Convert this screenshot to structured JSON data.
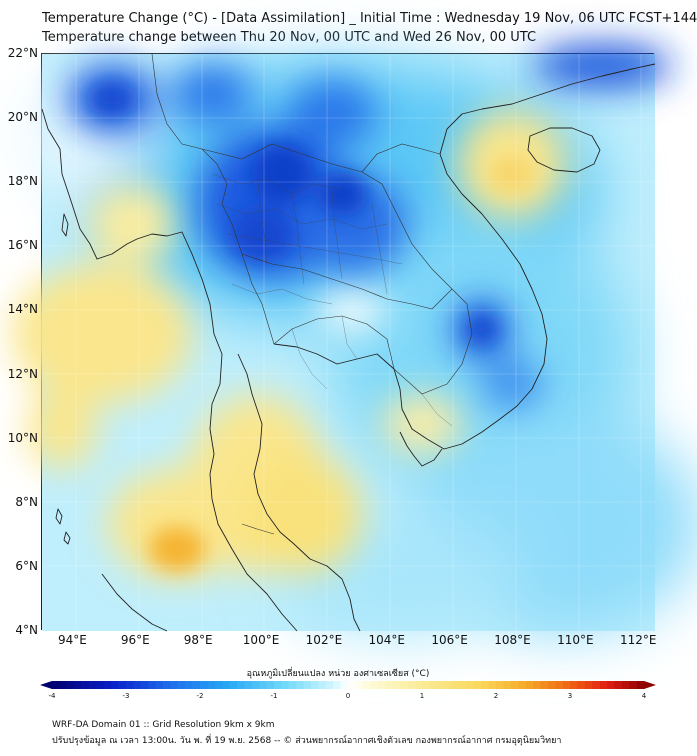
{
  "header": {
    "title_line1": "Temperature Change (°C) - [Data Assimilation] _ Initial Time : Wednesday 19 Nov, 06 UTC FCST+144",
    "title_line2": "Temperature change between Thu 20 Nov, 00 UTC and Wed 26 Nov, 00 UTC"
  },
  "map": {
    "lat_labels": [
      "22°N",
      "20°N",
      "18°N",
      "16°N",
      "14°N",
      "12°N",
      "10°N",
      "8°N",
      "6°N",
      "4°N"
    ],
    "lon_labels": [
      "94°E",
      "96°E",
      "98°E",
      "100°E",
      "102°E",
      "104°E",
      "106°E",
      "108°E",
      "110°E",
      "112°E"
    ],
    "lat_range": [
      4,
      22
    ],
    "lon_range": [
      93,
      112.5
    ],
    "colors": {
      "neutral": "#ffffff",
      "deep_blue": "#0a3cd2",
      "blue": "#1e8cf0",
      "light_blue": "#8cdcfa",
      "yellow": "#fae68c",
      "orange": "#f5b432",
      "coast": "#222222"
    }
  },
  "colorbar": {
    "label": "อุณหภูมิเปลี่ยนแปลง หน่วย องศาเซลเซียส (°C)",
    "ticks": [
      "-4",
      "-3",
      "-2",
      "-1",
      "0",
      "1",
      "2",
      "3",
      "4"
    ],
    "range": [
      -4,
      4
    ]
  },
  "footer": {
    "line1": "WRF-DA Domain 01 :: Grid Resolution 9km x 9km",
    "line2": "ปรับปรุงข้อมูล ณ เวลา 13:00น. วัน พ. ที่ 19 พ.ย. 2568 -- © ส่วนพยากรณ์อากาศเชิงตัวเลข กองพยากรณ์อากาศ กรมอุตุนิยมวิทยา"
  }
}
